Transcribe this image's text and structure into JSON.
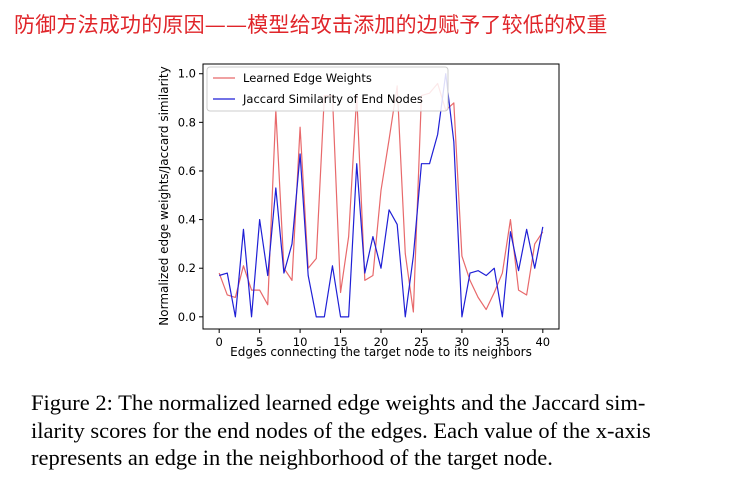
{
  "headline": "防御方法成功的原因——模型给攻击添加的边赋予了较低的权重",
  "caption": {
    "lines": [
      "Figure 2: The normalized learned edge weights and the Jaccard sim-",
      "ilarity scores for the end nodes of the edges. Each value of the x-axis",
      "represents an edge in the neighborhood of the target node."
    ]
  },
  "colors": {
    "learned": "#e8696b",
    "jaccard": "#1f1fd6",
    "headline": "#e0252a"
  },
  "chart_data": {
    "type": "line",
    "title": "",
    "xlabel": "Edges connecting the target node to its neighbors",
    "ylabel": "Normalized edge weights/Jaccard similarity",
    "xlim": [
      -2,
      42
    ],
    "ylim": [
      -0.05,
      1.04
    ],
    "xticks": [
      0,
      5,
      10,
      15,
      20,
      25,
      30,
      35,
      40
    ],
    "yticks": [
      0.0,
      0.2,
      0.4,
      0.6,
      0.8,
      1.0
    ],
    "grid": false,
    "legend_position": "top-left",
    "x": [
      0,
      1,
      2,
      3,
      4,
      5,
      6,
      7,
      8,
      9,
      10,
      11,
      12,
      13,
      14,
      15,
      16,
      17,
      18,
      19,
      20,
      21,
      22,
      23,
      24,
      25,
      26,
      27,
      28,
      29,
      30,
      31,
      32,
      33,
      34,
      35,
      36,
      37,
      38,
      39,
      40
    ],
    "series": [
      {
        "name": "Learned Edge Weights",
        "color": "#e8696b",
        "values": [
          0.18,
          0.09,
          0.08,
          0.21,
          0.11,
          0.11,
          0.05,
          0.85,
          0.2,
          0.15,
          0.78,
          0.2,
          0.24,
          0.91,
          0.91,
          0.1,
          0.33,
          0.91,
          0.15,
          0.17,
          0.52,
          0.73,
          0.95,
          0.26,
          0.02,
          0.91,
          0.92,
          0.96,
          0.85,
          0.88,
          0.25,
          0.15,
          0.08,
          0.03,
          0.1,
          0.18,
          0.4,
          0.11,
          0.09,
          0.3,
          0.35
        ]
      },
      {
        "name": "Jaccard Similarity of End Nodes",
        "color": "#1f1fd6",
        "values": [
          0.17,
          0.18,
          0.0,
          0.36,
          0.0,
          0.4,
          0.17,
          0.53,
          0.18,
          0.3,
          0.67,
          0.17,
          0.0,
          0.0,
          0.21,
          0.0,
          0.0,
          0.63,
          0.18,
          0.33,
          0.2,
          0.44,
          0.38,
          0.0,
          0.25,
          0.63,
          0.63,
          0.75,
          1.0,
          0.72,
          0.0,
          0.18,
          0.19,
          0.17,
          0.2,
          0.0,
          0.35,
          0.19,
          0.36,
          0.2,
          0.37
        ]
      }
    ]
  }
}
